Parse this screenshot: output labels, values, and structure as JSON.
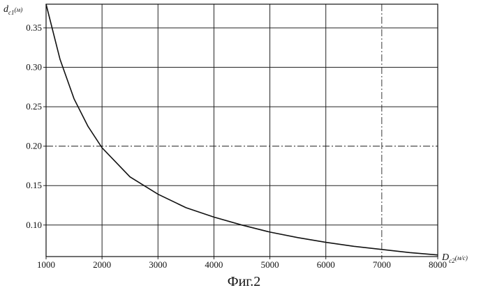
{
  "caption": "Фиг.2",
  "chart_data": {
    "type": "line",
    "title": "",
    "xlabel": {
      "main": "D",
      "sub": "c2",
      "unit": "(м/с)"
    },
    "ylabel": {
      "main": "d",
      "sub": "c1",
      "unit": "(м)"
    },
    "xlim": [
      1000,
      8000
    ],
    "ylim": [
      0.06,
      0.38
    ],
    "x_ticks": [
      1000,
      2000,
      3000,
      4000,
      5000,
      6000,
      7000,
      8000
    ],
    "y_ticks": [
      0.1,
      0.15,
      0.2,
      0.25,
      0.3,
      0.35
    ],
    "grid": true,
    "legend": "none",
    "series": [
      {
        "x": [
          1000,
          1250,
          1500,
          1750,
          2000,
          2500,
          3000,
          3500,
          4000,
          4500,
          5000,
          5500,
          6000,
          6500,
          7000,
          7500,
          8000
        ],
        "y": [
          0.38,
          0.31,
          0.26,
          0.225,
          0.198,
          0.161,
          0.139,
          0.122,
          0.11,
          0.1,
          0.091,
          0.084,
          0.078,
          0.073,
          0.069,
          0.065,
          0.062
        ]
      }
    ]
  }
}
